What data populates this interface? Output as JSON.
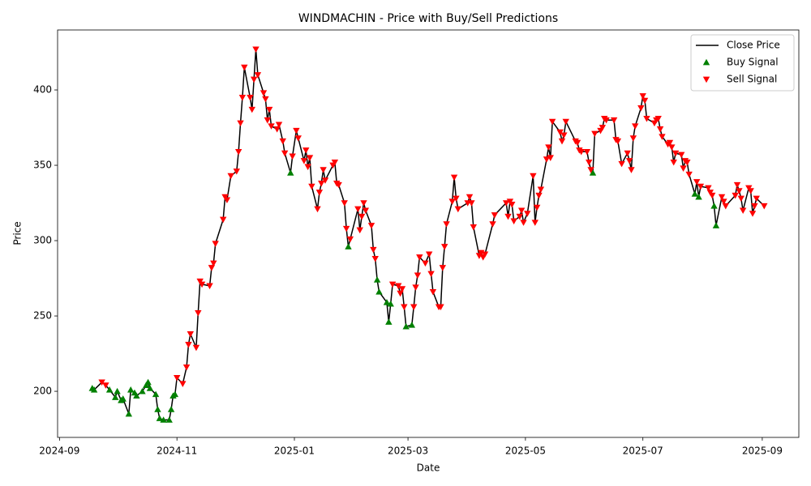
{
  "chart_data": {
    "type": "line",
    "title": "WINDMACHIN - Price with Buy/Sell Predictions",
    "xlabel": "Date",
    "ylabel": "Price",
    "legend": "upper right",
    "xlim": [
      "2024-08-31",
      "2025-09-20"
    ],
    "ylim": [
      169.4,
      439.8
    ],
    "xticks": [
      {
        "value": "2024-09-01",
        "label": "2024-09"
      },
      {
        "value": "2024-11-01",
        "label": "2024-11"
      },
      {
        "value": "2025-01-01",
        "label": "2025-01"
      },
      {
        "value": "2025-03-01",
        "label": "2025-03"
      },
      {
        "value": "2025-05-01",
        "label": "2025-05"
      },
      {
        "value": "2025-07-01",
        "label": "2025-07"
      },
      {
        "value": "2025-09-01",
        "label": "2025-09"
      }
    ],
    "yticks": [
      200,
      250,
      300,
      350,
      400
    ],
    "x": [
      "2024-09-18",
      "2024-09-19",
      "2024-09-23",
      "2024-09-25",
      "2024-09-27",
      "2024-09-30",
      "2024-10-01",
      "2024-10-03",
      "2024-10-04",
      "2024-10-07",
      "2024-10-08",
      "2024-10-10",
      "2024-10-11",
      "2024-10-14",
      "2024-10-16",
      "2024-10-17",
      "2024-10-18",
      "2024-10-21",
      "2024-10-22",
      "2024-10-23",
      "2024-10-25",
      "2024-10-28",
      "2024-10-29",
      "2024-10-30",
      "2024-10-31",
      "2024-11-01",
      "2024-11-04",
      "2024-11-06",
      "2024-11-07",
      "2024-11-08",
      "2024-11-11",
      "2024-11-12",
      "2024-11-13",
      "2024-11-14",
      "2024-11-18",
      "2024-11-19",
      "2024-11-20",
      "2024-11-21",
      "2024-11-25",
      "2024-11-26",
      "2024-11-27",
      "2024-11-29",
      "2024-12-02",
      "2024-12-03",
      "2024-12-04",
      "2024-12-05",
      "2024-12-06",
      "2024-12-09",
      "2024-12-10",
      "2024-12-11",
      "2024-12-12",
      "2024-12-13",
      "2024-12-16",
      "2024-12-17",
      "2024-12-18",
      "2024-12-19",
      "2024-12-20",
      "2024-12-23",
      "2024-12-24",
      "2024-12-26",
      "2024-12-27",
      "2024-12-30",
      "2024-12-31",
      "2025-01-02",
      "2025-01-03",
      "2025-01-06",
      "2025-01-07",
      "2025-01-08",
      "2025-01-09",
      "2025-01-10",
      "2025-01-13",
      "2025-01-14",
      "2025-01-15",
      "2025-01-16",
      "2025-01-17",
      "2025-01-21",
      "2025-01-22",
      "2025-01-23",
      "2025-01-24",
      "2025-01-27",
      "2025-01-28",
      "2025-01-29",
      "2025-01-30",
      "2025-02-03",
      "2025-02-04",
      "2025-02-05",
      "2025-02-06",
      "2025-02-07",
      "2025-02-10",
      "2025-02-11",
      "2025-02-12",
      "2025-02-13",
      "2025-02-14",
      "2025-02-18",
      "2025-02-19",
      "2025-02-20",
      "2025-02-21",
      "2025-02-24",
      "2025-02-25",
      "2025-02-26",
      "2025-02-27",
      "2025-02-28",
      "2025-03-03",
      "2025-03-04",
      "2025-03-05",
      "2025-03-06",
      "2025-03-07",
      "2025-03-10",
      "2025-03-12",
      "2025-03-13",
      "2025-03-14",
      "2025-03-17",
      "2025-03-18",
      "2025-03-19",
      "2025-03-20",
      "2025-03-21",
      "2025-03-24",
      "2025-03-25",
      "2025-03-26",
      "2025-03-27",
      "2025-04-01",
      "2025-04-02",
      "2025-04-03",
      "2025-04-04",
      "2025-04-07",
      "2025-04-08",
      "2025-04-09",
      "2025-04-10",
      "2025-04-14",
      "2025-04-15",
      "2025-04-21",
      "2025-04-22",
      "2025-04-23",
      "2025-04-24",
      "2025-04-25",
      "2025-04-28",
      "2025-04-29",
      "2025-04-30",
      "2025-05-02",
      "2025-05-05",
      "2025-05-06",
      "2025-05-07",
      "2025-05-08",
      "2025-05-09",
      "2025-05-12",
      "2025-05-13",
      "2025-05-14",
      "2025-05-15",
      "2025-05-19",
      "2025-05-20",
      "2025-05-21",
      "2025-05-22",
      "2025-05-27",
      "2025-05-28",
      "2025-05-29",
      "2025-05-30",
      "2025-06-02",
      "2025-06-03",
      "2025-06-04",
      "2025-06-05",
      "2025-06-06",
      "2025-06-09",
      "2025-06-10",
      "2025-06-11",
      "2025-06-12",
      "2025-06-16",
      "2025-06-17",
      "2025-06-18",
      "2025-06-20",
      "2025-06-23",
      "2025-06-24",
      "2025-06-25",
      "2025-06-26",
      "2025-06-27",
      "2025-06-30",
      "2025-07-01",
      "2025-07-02",
      "2025-07-03",
      "2025-07-07",
      "2025-07-08",
      "2025-07-09",
      "2025-07-10",
      "2025-07-11",
      "2025-07-14",
      "2025-07-15",
      "2025-07-16",
      "2025-07-17",
      "2025-07-18",
      "2025-07-21",
      "2025-07-22",
      "2025-07-23",
      "2025-07-24",
      "2025-07-25",
      "2025-07-28",
      "2025-07-29",
      "2025-07-30",
      "2025-07-31",
      "2025-08-04",
      "2025-08-05",
      "2025-08-06",
      "2025-08-07",
      "2025-08-08",
      "2025-08-11",
      "2025-08-12",
      "2025-08-13",
      "2025-08-18",
      "2025-08-19",
      "2025-08-20",
      "2025-08-21",
      "2025-08-22",
      "2025-08-25",
      "2025-08-26",
      "2025-08-27",
      "2025-08-28",
      "2025-08-29",
      "2025-09-02"
    ],
    "series": [
      {
        "name": "Close Price",
        "color": "#000000",
        "values": [
          202,
          201,
          206,
          204,
          201,
          196,
          200,
          194,
          195,
          185,
          201,
          199,
          197,
          200,
          204,
          206,
          202,
          198,
          188,
          182,
          181,
          181,
          188,
          197,
          198,
          209,
          205,
          216,
          231,
          238,
          229,
          252,
          273,
          271,
          270,
          282,
          285,
          298,
          314,
          329,
          327,
          343,
          346,
          359,
          378,
          395,
          415,
          395,
          387,
          407,
          427,
          410,
          398,
          394,
          380,
          387,
          376,
          374,
          377,
          366,
          358,
          345,
          356,
          373,
          368,
          353,
          360,
          349,
          355,
          336,
          321,
          332,
          338,
          347,
          340,
          350,
          352,
          338,
          337,
          325,
          308,
          296,
          301,
          321,
          307,
          316,
          325,
          320,
          310,
          294,
          288,
          274,
          266,
          259,
          246,
          258,
          271,
          270,
          265,
          268,
          256,
          243,
          244,
          256,
          269,
          277,
          289,
          285,
          291,
          278,
          266,
          256,
          256,
          282,
          296,
          311,
          326,
          342,
          328,
          321,
          325,
          329,
          325,
          309,
          290,
          292,
          289,
          291,
          311,
          317,
          325,
          316,
          326,
          324,
          313,
          316,
          320,
          312,
          318,
          343,
          312,
          322,
          330,
          334,
          354,
          362,
          355,
          379,
          372,
          366,
          370,
          379,
          366,
          365,
          360,
          359,
          359,
          352,
          347,
          345,
          371,
          373,
          375,
          381,
          380,
          380,
          367,
          366,
          351,
          358,
          353,
          347,
          368,
          376,
          388,
          396,
          393,
          381,
          378,
          380,
          381,
          374,
          369,
          364,
          365,
          362,
          352,
          358,
          357,
          348,
          353,
          352,
          344,
          331,
          339,
          329,
          336,
          335,
          332,
          330,
          323,
          310,
          329,
          326,
          323,
          330,
          337,
          333,
          328,
          320,
          335,
          333,
          318,
          323,
          328,
          323
        ]
      },
      {
        "name": "Buy Signal",
        "color": "#008000",
        "marker": "^",
        "values": [
          202,
          201,
          null,
          null,
          201,
          196,
          200,
          194,
          195,
          185,
          201,
          199,
          197,
          200,
          204,
          206,
          202,
          198,
          188,
          182,
          181,
          181,
          188,
          197,
          198,
          null,
          null,
          null,
          null,
          null,
          null,
          null,
          null,
          null,
          null,
          null,
          null,
          null,
          null,
          null,
          null,
          null,
          null,
          null,
          null,
          null,
          null,
          null,
          null,
          null,
          null,
          null,
          null,
          null,
          null,
          null,
          null,
          null,
          null,
          null,
          null,
          345,
          null,
          null,
          null,
          null,
          null,
          null,
          null,
          null,
          null,
          null,
          null,
          null,
          null,
          null,
          null,
          null,
          null,
          null,
          null,
          296,
          null,
          null,
          null,
          null,
          null,
          null,
          null,
          null,
          null,
          274,
          266,
          259,
          246,
          258,
          null,
          null,
          null,
          null,
          null,
          243,
          244,
          null,
          null,
          null,
          null,
          null,
          null,
          null,
          null,
          null,
          null,
          null,
          null,
          null,
          null,
          null,
          null,
          null,
          null,
          null,
          null,
          null,
          null,
          null,
          null,
          null,
          null,
          null,
          null,
          null,
          null,
          null,
          null,
          null,
          null,
          null,
          null,
          null,
          null,
          null,
          null,
          null,
          null,
          null,
          null,
          null,
          null,
          null,
          null,
          null,
          null,
          null,
          null,
          null,
          null,
          null,
          null,
          345,
          null,
          null,
          null,
          null,
          null,
          null,
          null,
          null,
          null,
          null,
          null,
          null,
          null,
          null,
          null,
          null,
          null,
          null,
          null,
          null,
          null,
          null,
          null,
          null,
          null,
          null,
          null,
          null,
          null,
          null,
          null,
          null,
          null,
          331,
          null,
          329,
          null,
          null,
          null,
          null,
          323,
          310,
          null,
          null,
          null,
          null,
          null,
          null,
          null,
          null,
          null,
          null,
          null,
          null,
          null,
          null
        ]
      },
      {
        "name": "Sell Signal",
        "color": "#ff0000",
        "marker": "v",
        "values": [
          null,
          null,
          206,
          204,
          null,
          null,
          null,
          null,
          null,
          null,
          null,
          null,
          null,
          null,
          null,
          null,
          null,
          null,
          null,
          null,
          null,
          null,
          null,
          null,
          null,
          209,
          205,
          216,
          231,
          238,
          229,
          252,
          273,
          271,
          270,
          282,
          285,
          298,
          314,
          329,
          327,
          343,
          346,
          359,
          378,
          395,
          415,
          395,
          387,
          407,
          427,
          410,
          398,
          394,
          380,
          387,
          376,
          374,
          377,
          366,
          358,
          null,
          356,
          373,
          368,
          353,
          360,
          349,
          355,
          336,
          321,
          332,
          338,
          347,
          340,
          350,
          352,
          338,
          337,
          325,
          308,
          null,
          301,
          321,
          307,
          316,
          325,
          320,
          310,
          294,
          288,
          null,
          null,
          null,
          null,
          null,
          271,
          270,
          265,
          268,
          256,
          null,
          null,
          256,
          269,
          277,
          289,
          285,
          291,
          278,
          266,
          256,
          256,
          282,
          296,
          311,
          326,
          342,
          328,
          321,
          325,
          329,
          325,
          309,
          290,
          292,
          289,
          291,
          311,
          317,
          325,
          316,
          326,
          324,
          313,
          316,
          320,
          312,
          318,
          343,
          312,
          322,
          330,
          334,
          354,
          362,
          355,
          379,
          372,
          366,
          370,
          379,
          366,
          365,
          360,
          359,
          359,
          352,
          347,
          null,
          371,
          373,
          375,
          381,
          380,
          380,
          367,
          366,
          351,
          358,
          353,
          347,
          368,
          376,
          388,
          396,
          393,
          381,
          378,
          380,
          381,
          374,
          369,
          364,
          365,
          362,
          352,
          358,
          357,
          348,
          353,
          352,
          344,
          null,
          339,
          null,
          336,
          335,
          332,
          330,
          null,
          null,
          329,
          326,
          323,
          330,
          337,
          333,
          328,
          320,
          335,
          333,
          318,
          323,
          328,
          323
        ]
      }
    ]
  }
}
